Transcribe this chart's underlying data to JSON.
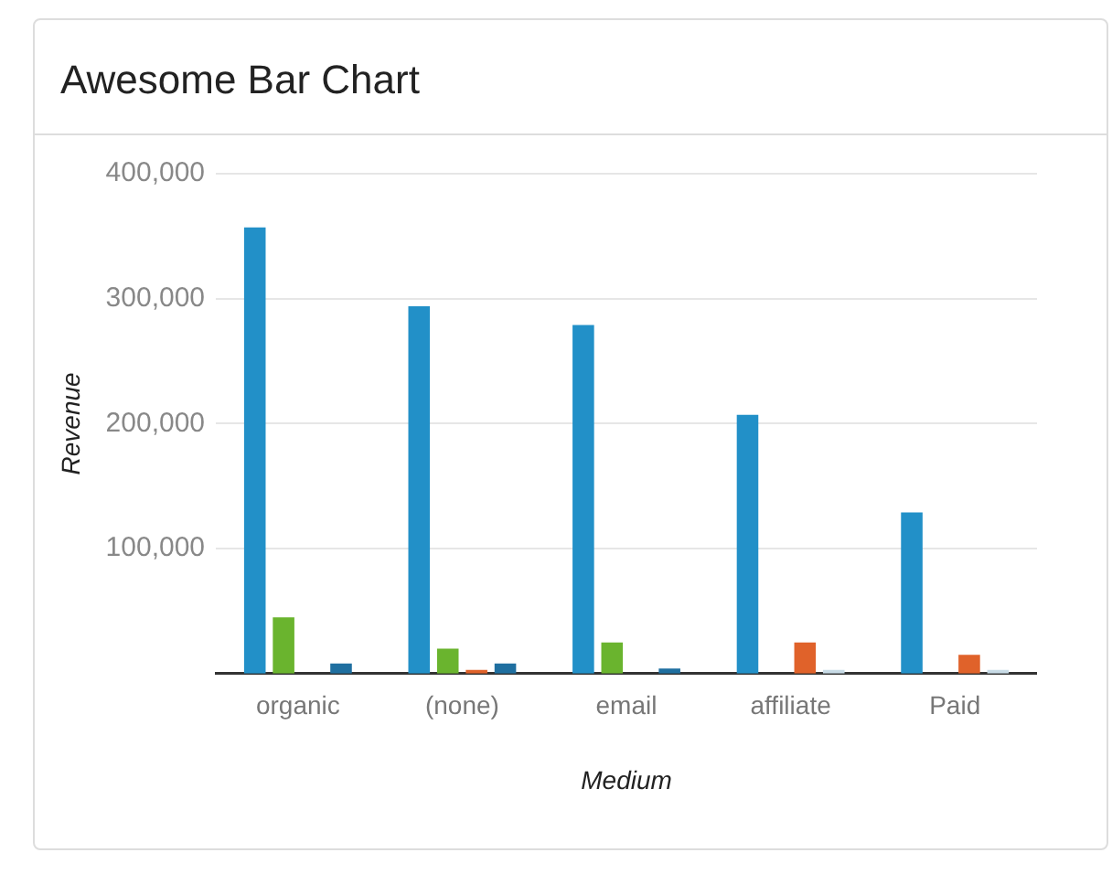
{
  "chart_data": {
    "type": "bar",
    "title": "Awesome Bar Chart",
    "xlabel": "Medium",
    "ylabel": "Revenue",
    "categories": [
      "organic",
      "(none)",
      "email",
      "affiliate",
      "Paid"
    ],
    "series": [
      {
        "color": "#2290c8",
        "values": [
          357000,
          294000,
          279000,
          207000,
          129000
        ]
      },
      {
        "color": "#6ab42e",
        "values": [
          45000,
          20000,
          25000,
          0,
          0
        ]
      },
      {
        "color": "#e0622a",
        "values": [
          0,
          3000,
          0,
          25000,
          15000
        ]
      },
      {
        "colors": [
          "#1f6fa0",
          "#1f6fa0",
          "#1f6fa0",
          "#c8dbe6",
          "#c8dbe6"
        ],
        "values": [
          8000,
          8000,
          4000,
          3000,
          3000
        ]
      }
    ],
    "ylim": [
      0,
      400000
    ],
    "yticks": [
      {
        "value": 100000,
        "label": "100,000"
      },
      {
        "value": 200000,
        "label": "200,000"
      },
      {
        "value": 300000,
        "label": "300,000"
      },
      {
        "value": 400000,
        "label": "400,000"
      }
    ],
    "grid": "y",
    "legend": false
  }
}
